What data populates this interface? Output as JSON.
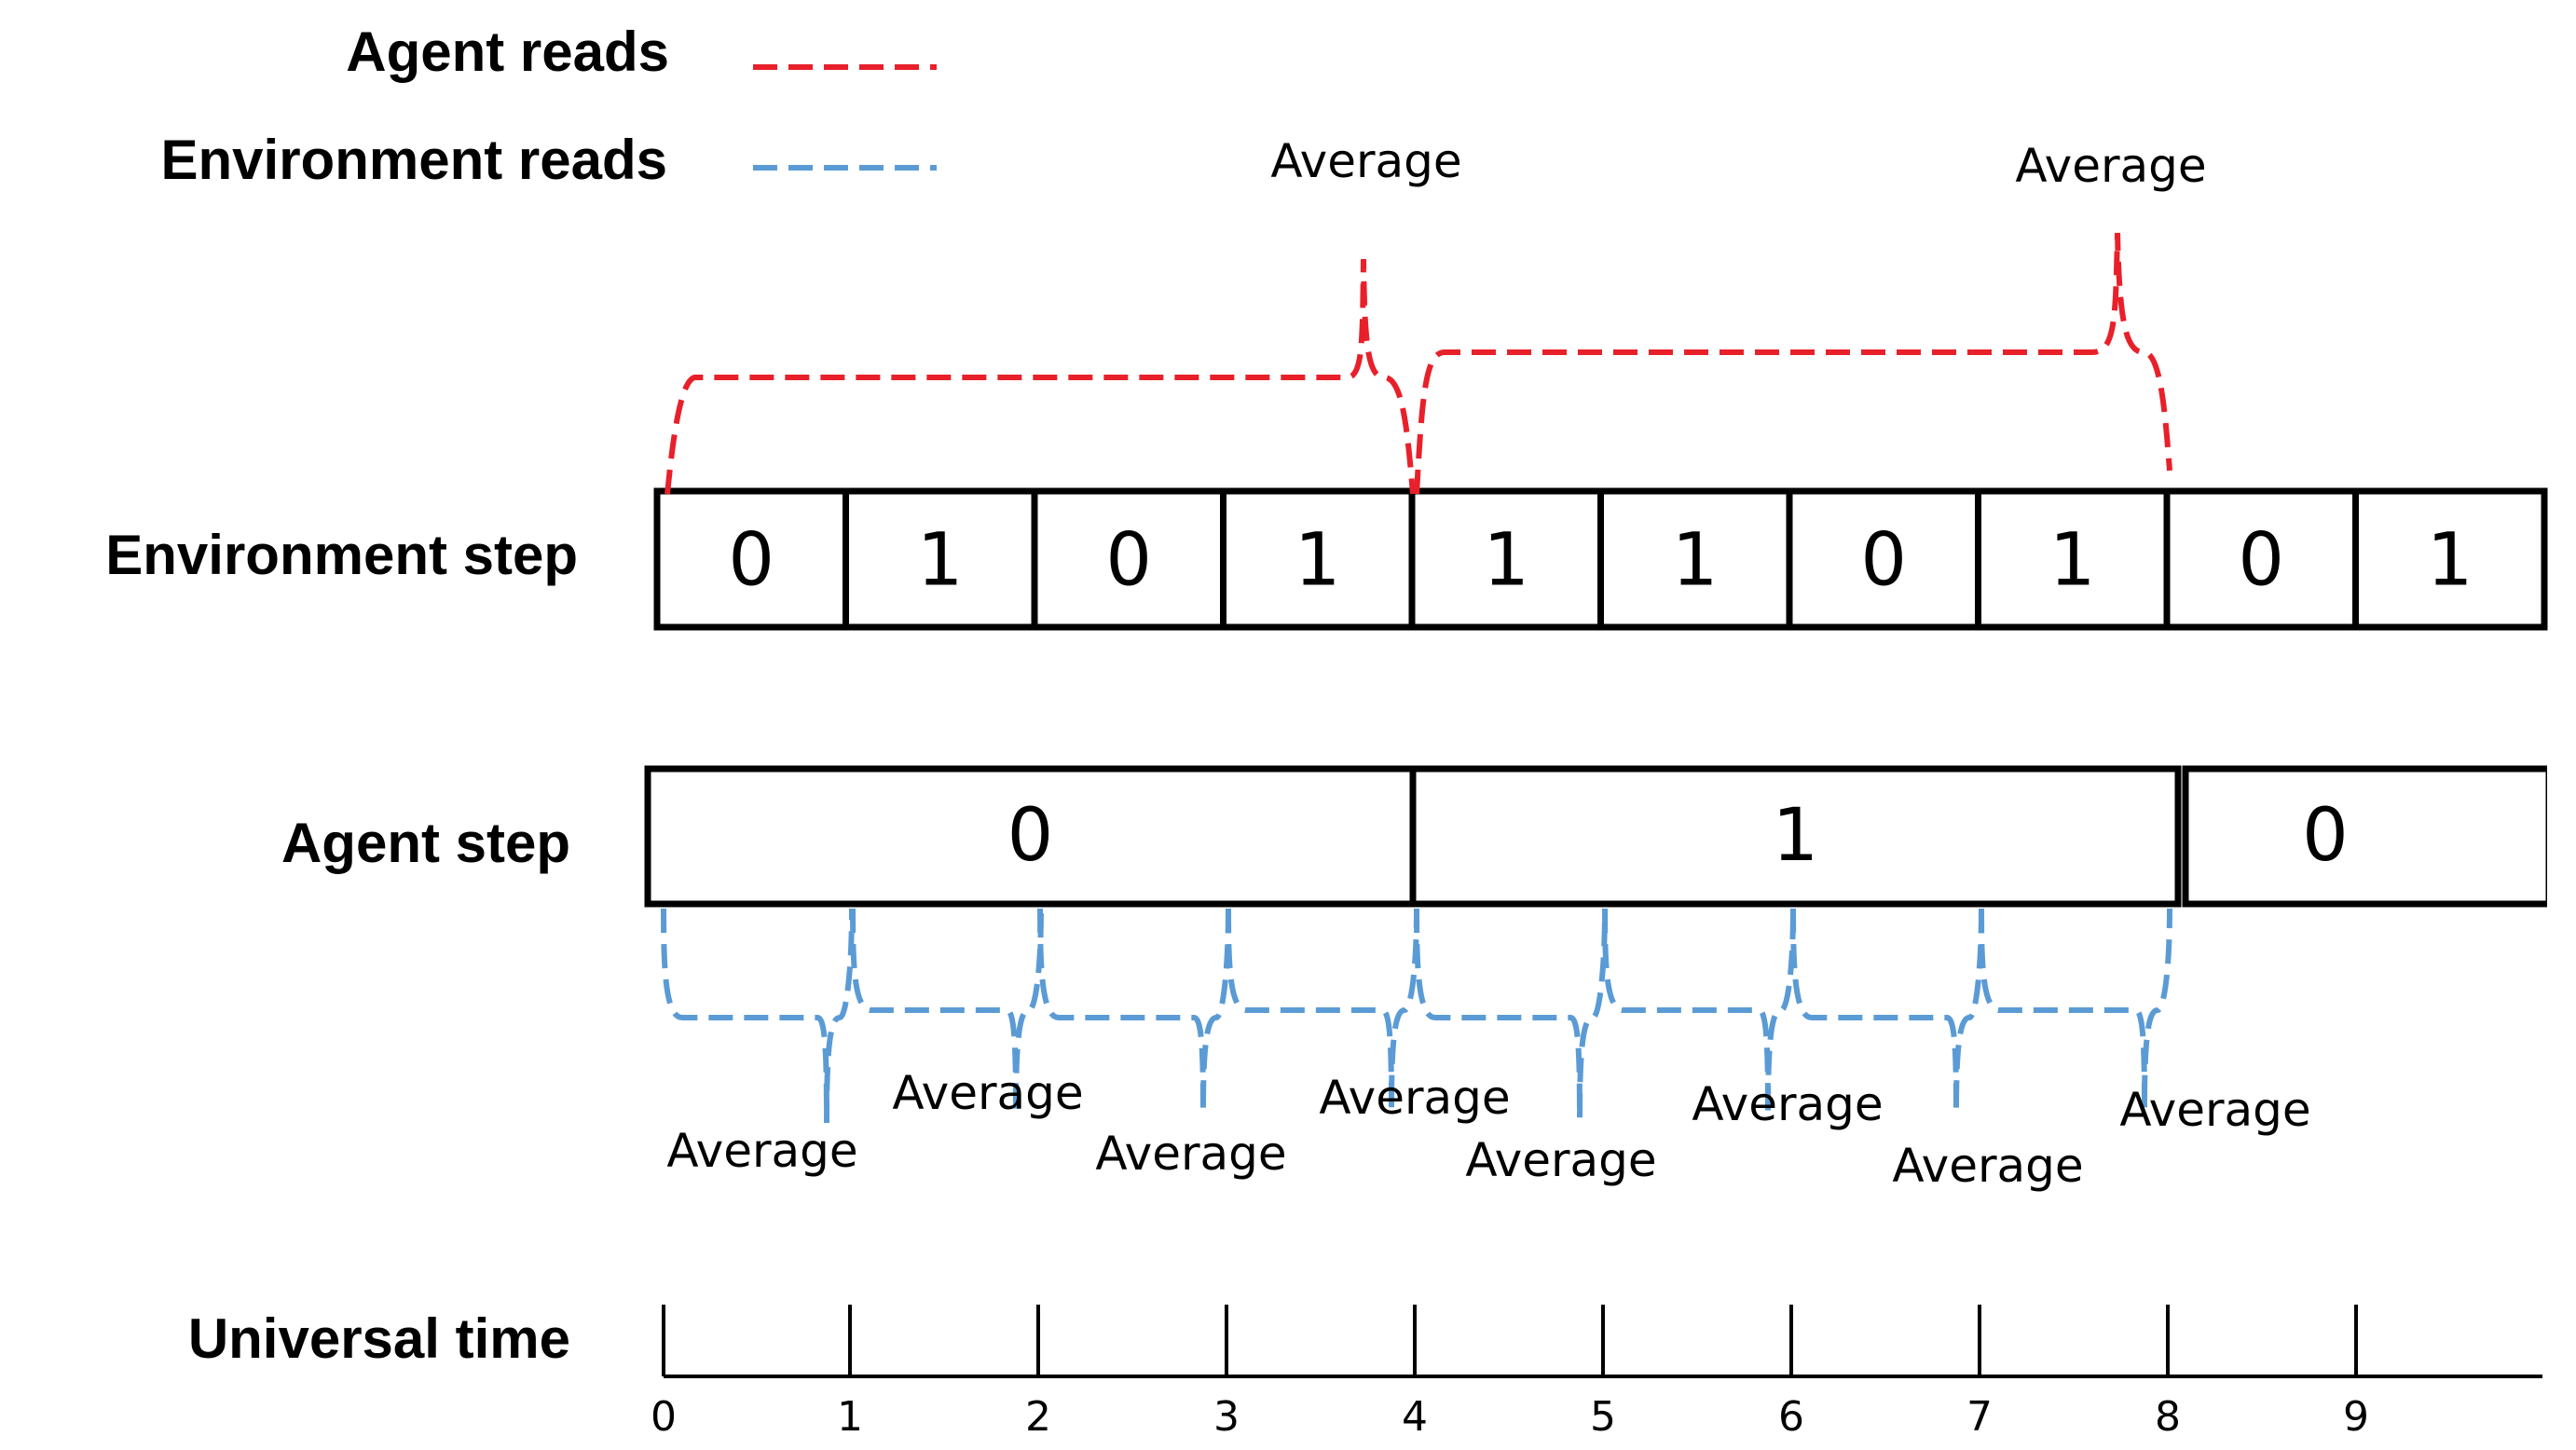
{
  "legend": {
    "agent_reads": {
      "label": "Agent reads",
      "color": "#e8202a"
    },
    "environment_reads": {
      "label": "Environment reads",
      "color": "#5b9bd5"
    }
  },
  "rows": {
    "environment_step": "Environment step",
    "agent_step": "Agent step",
    "universal_time": "Universal time"
  },
  "environment_cells": [
    "0",
    "1",
    "0",
    "1",
    "1",
    "1",
    "0",
    "1",
    "0",
    "1"
  ],
  "agent_cells": [
    "0",
    "1",
    "0"
  ],
  "agent_average_label": "Average",
  "environment_average_label": "Average",
  "time_ticks": [
    "0",
    "1",
    "2",
    "3",
    "4",
    "5",
    "6",
    "7",
    "8",
    "9"
  ]
}
